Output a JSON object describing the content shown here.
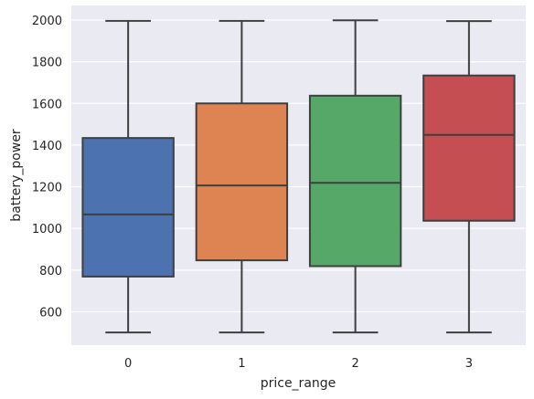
{
  "chart_data": {
    "type": "box",
    "xlabel": "price_range",
    "ylabel": "battery_power",
    "ylim": [
      440,
      2070
    ],
    "yticks": [
      600,
      800,
      1000,
      1200,
      1400,
      1600,
      1800,
      2000
    ],
    "categories": [
      "0",
      "1",
      "2",
      "3"
    ],
    "boxes": [
      {
        "category": "0",
        "min": 501,
        "q1": 769,
        "median": 1067,
        "q3": 1434,
        "max": 1996,
        "color": "#4c72b0"
      },
      {
        "category": "1",
        "min": 501,
        "q1": 847,
        "median": 1206,
        "q3": 1600,
        "max": 1996,
        "color": "#dd8452"
      },
      {
        "category": "2",
        "min": 501,
        "q1": 819,
        "median": 1219,
        "q3": 1637,
        "max": 1999,
        "color": "#55a868"
      },
      {
        "category": "3",
        "min": 501,
        "q1": 1037,
        "median": 1449,
        "q3": 1734,
        "max": 1995,
        "color": "#c44e52"
      }
    ],
    "grid": true,
    "background": "#eaeaf2",
    "grid_color": "#ffffff",
    "line_color": "#3f3f3f"
  }
}
